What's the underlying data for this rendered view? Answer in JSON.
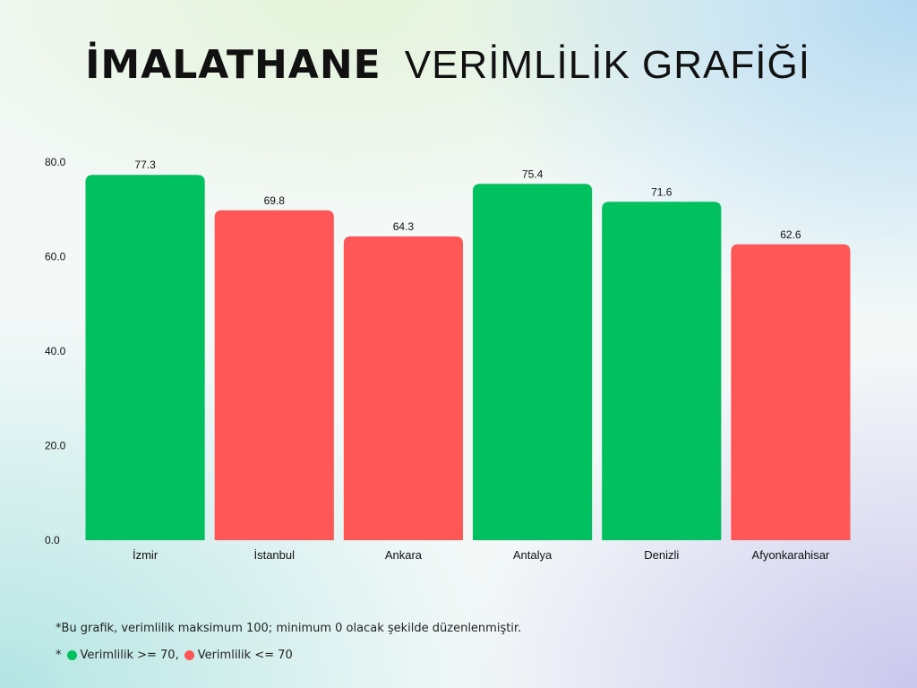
{
  "title": {
    "bold": "İMALATHANE",
    "light": "VERİMLİLİK GRAFİĞİ"
  },
  "chart_data": {
    "type": "bar",
    "categories": [
      "İzmir",
      "İstanbul",
      "Ankara",
      "Antalya",
      "Denizli",
      "Afyonkarahisar"
    ],
    "values": [
      77.3,
      69.8,
      64.3,
      75.4,
      71.6,
      62.6
    ],
    "value_labels": [
      "77.3",
      "69.8",
      "64.3",
      "75.4",
      "71.6",
      "62.6"
    ],
    "y_ticks": [
      0,
      20,
      40,
      60,
      80
    ],
    "y_tick_labels": [
      "0.0",
      "20.0",
      "40.0",
      "60.0",
      "80.0"
    ],
    "ylim": [
      0,
      80
    ],
    "grid": false,
    "threshold": 70,
    "bar_colors": {
      "high": "#00c060",
      "low": "#ff5757"
    }
  },
  "footnote": "*Bu grafik, verimlilik maksimum 100; minimum 0 olacak şekilde düzenlenmiştir.",
  "legend": {
    "prefix": "*",
    "high_label": "Verimlilik >= 70,",
    "low_label": "Verimlilik <= 70"
  },
  "colors": {
    "high": "#00c060",
    "low": "#ff5757",
    "text": "#111111"
  }
}
